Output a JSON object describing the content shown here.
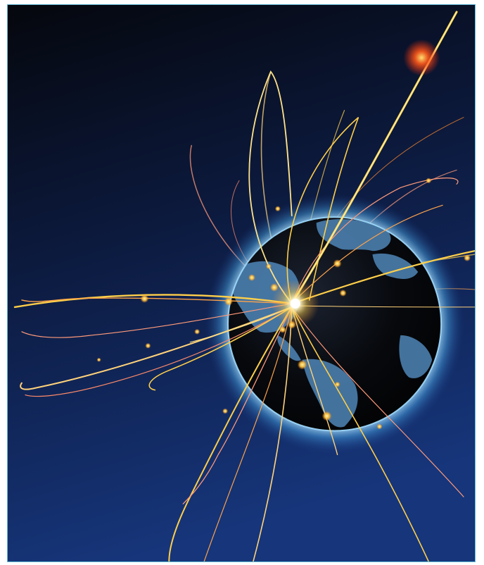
{
  "image": {
    "subject": "globe-with-light-trails",
    "icon": "globe-icon"
  },
  "colors": {
    "frame_border": "#5fb8d6",
    "sky_top": "#05070d",
    "sky_bottom": "#12306e",
    "globe_dark": "#050608",
    "globe_land": "#4f86b8",
    "halo": "#8fd3ff",
    "trail_warm": "#ffcf4a",
    "trail_orange": "#ff8a2a",
    "trail_pink": "#ff9a7a",
    "flare_red": "#ff3a1a",
    "hotspot": "#ffffff"
  }
}
